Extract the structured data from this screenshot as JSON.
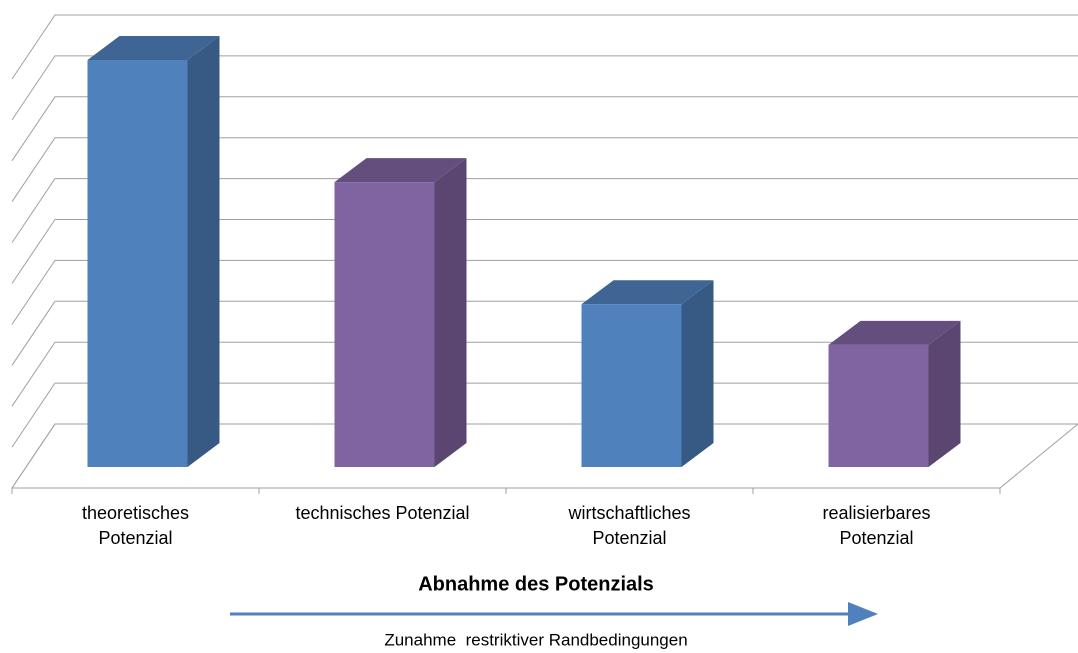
{
  "chart_data": {
    "type": "bar3d",
    "categories": [
      "theoretisches\nPotenzial",
      "technisches Potenzial",
      "wirtschaftliches\nPotenzial",
      "realisierbares\nPotenzial"
    ],
    "values": [
      10,
      7,
      4,
      3
    ],
    "colors": [
      "#4f81bd",
      "#8064a2",
      "#4f81bd",
      "#8064a2"
    ],
    "ylim": [
      0,
      10
    ],
    "yticks": [
      0,
      1,
      2,
      3,
      4,
      5,
      6,
      7,
      8,
      9,
      10
    ],
    "grid": true,
    "xlabel": "Abnahme des Potenzials",
    "annotation": "Zunahme  restriktiver Randbedingungen"
  }
}
